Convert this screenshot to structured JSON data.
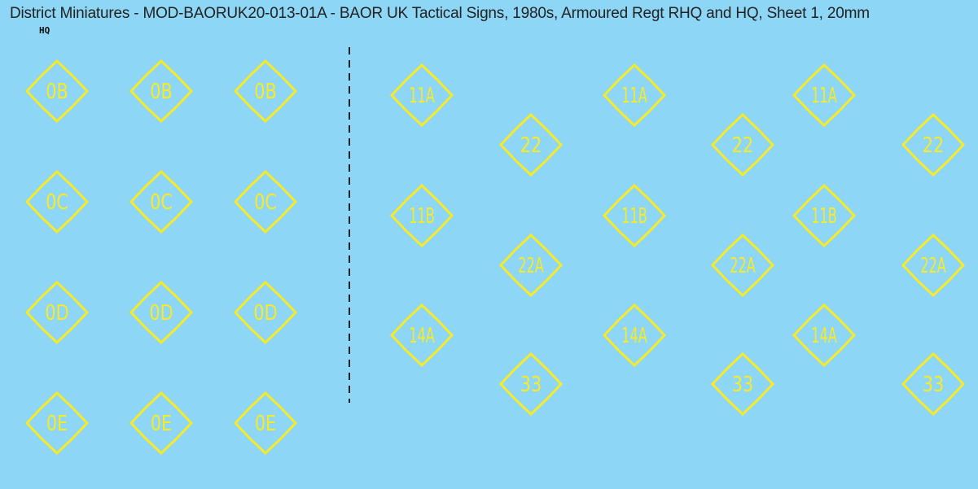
{
  "title": "District Miniatures - MOD-BAORUK20-013-01A - BAOR UK Tactical Signs, 1980s, Armoured Regt RHQ and HQ, Sheet 1, 20mm",
  "section_label": "HQ",
  "colors": {
    "background": "#8ed6f5",
    "sign": "#f7ea2a",
    "divider": "#222222"
  },
  "hq_signs": [
    [
      "0B",
      "0B",
      "0B"
    ],
    [
      "0C",
      "0C",
      "0C"
    ],
    [
      "0D",
      "0D",
      "0D"
    ],
    [
      "0E",
      "0E",
      "0E"
    ]
  ],
  "rhq_signs_column_a": [
    "11A",
    "11B",
    "14A"
  ],
  "rhq_signs_column_b": [
    "22",
    "22A",
    "33"
  ],
  "rhq_repeat": 3
}
